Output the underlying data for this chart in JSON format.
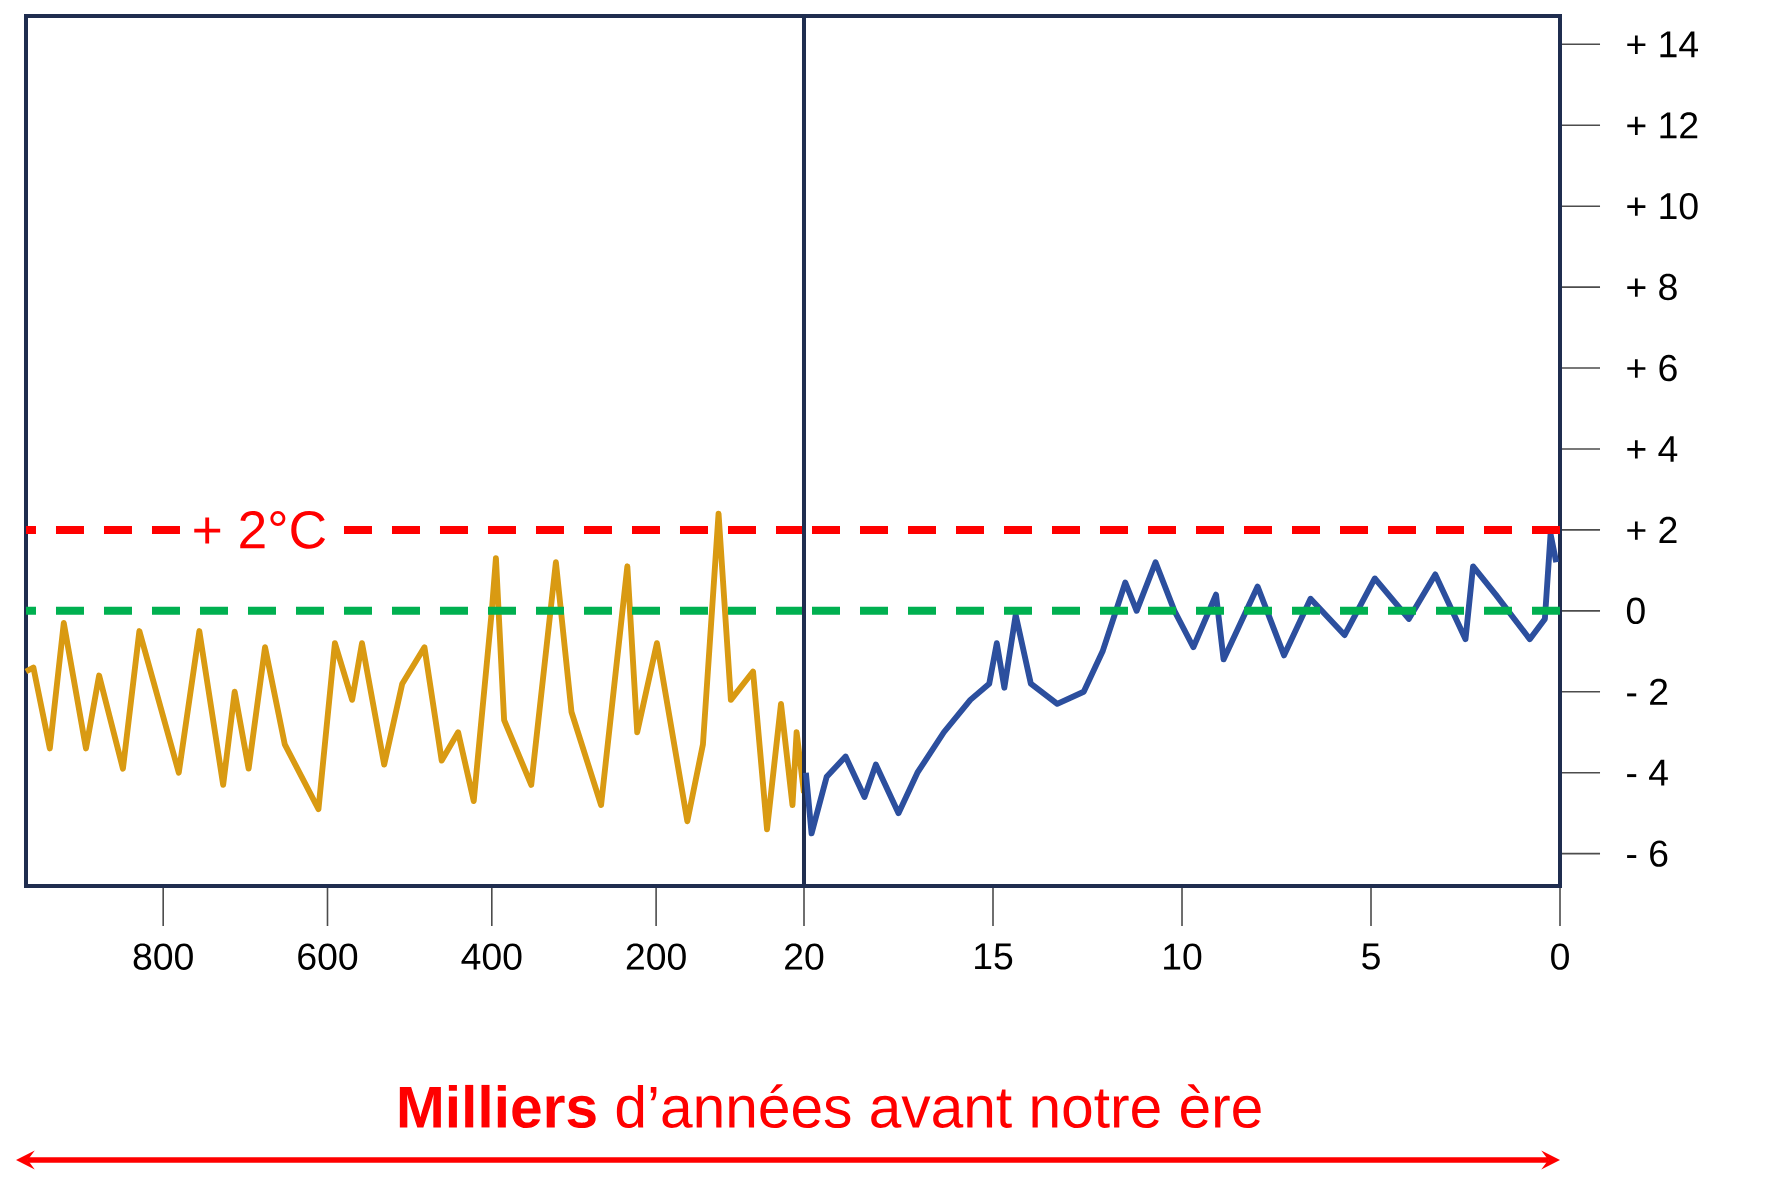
{
  "chart_data": [
    {
      "type": "line",
      "xlabel": "**Milliers** d’années avant notre ère",
      "xlim": [
        967,
        20
      ],
      "ylim": [
        -6.8,
        14.7
      ],
      "xticks": [
        800,
        600,
        400,
        200
      ],
      "tick_labels": "x",
      "line_style": "solid",
      "marker": "none",
      "series": [
        {
          "color": "#d99a12",
          "x": [
            967,
            958,
            938,
            921,
            894,
            878,
            849,
            829,
            781,
            756,
            727,
            713,
            696,
            676,
            652,
            611,
            591,
            570,
            558,
            531,
            509,
            482,
            461,
            441,
            422,
            400,
            395,
            385,
            352,
            322,
            303,
            267,
            235,
            223,
            199,
            162,
            143,
            124,
            109,
            82,
            65,
            48,
            34,
            29,
            20
          ],
          "values": [
            -1.5,
            -1.4,
            -3.4,
            -0.3,
            -3.4,
            -1.6,
            -3.9,
            -0.5,
            -4.0,
            -0.5,
            -4.3,
            -2.0,
            -3.9,
            -0.9,
            -3.3,
            -4.9,
            -0.8,
            -2.2,
            -0.8,
            -3.8,
            -1.8,
            -0.9,
            -3.7,
            -3.0,
            -4.7,
            0,
            1.3,
            -2.7,
            -4.3,
            1.2,
            -2.5,
            -4.8,
            1.1,
            -3.0,
            -0.8,
            -5.2,
            -3.3,
            2.4,
            -2.2,
            -1.5,
            -5.4,
            -2.3,
            -4.8,
            -3.0,
            -4.5
          ]
        }
      ],
      "ref_lines": [
        {
          "axis": "y",
          "value": 2,
          "label": "+ 2°C",
          "color": "#ff0000",
          "line_style": "dashed"
        },
        {
          "axis": "y",
          "value": 0,
          "color": "#00b050",
          "line_style": "dashed"
        }
      ]
    },
    {
      "type": "line",
      "xlim": [
        20,
        0
      ],
      "ylim": [
        -6.8,
        14.7
      ],
      "xticks": [
        20,
        15,
        10,
        5,
        0
      ],
      "yticks": [
        {
          "value": 14,
          "label": "+ 14"
        },
        {
          "value": 12,
          "label": "+ 12"
        },
        {
          "value": 10,
          "label": "+ 10"
        },
        {
          "value": 8,
          "label": "+ 8"
        },
        {
          "value": 6,
          "label": "+ 6"
        },
        {
          "value": 4,
          "label": "+ 4"
        },
        {
          "value": 2,
          "label": "+ 2"
        },
        0,
        {
          "value": -2,
          "label": "- 2"
        },
        {
          "value": -4,
          "label": "- 4"
        },
        {
          "value": -6,
          "label": "- 6"
        }
      ],
      "line_style": "solid",
      "marker": "none",
      "series": [
        {
          "color": "#2c4f9e",
          "x": [
            19.95,
            19.8,
            19.4,
            18.9,
            18.4,
            18.1,
            17.5,
            17.0,
            16.3,
            15.6,
            15.1,
            14.9,
            14.7,
            14.4,
            14.0,
            13.3,
            12.6,
            12.1,
            11.5,
            11.2,
            10.7,
            10.2,
            9.7,
            9.1,
            8.9,
            8.0,
            7.3,
            6.6,
            5.7,
            4.9,
            4.0,
            3.3,
            2.5,
            2.3,
            1.7,
            0.8,
            0.4,
            0.25,
            0.1
          ],
          "values": [
            -4.0,
            -5.5,
            -4.1,
            -3.6,
            -4.6,
            -3.8,
            -5.0,
            -4.0,
            -3.0,
            -2.2,
            -1.8,
            -0.8,
            -1.9,
            -0.1,
            -1.8,
            -2.3,
            -2.0,
            -1.0,
            0.7,
            0,
            1.2,
            0,
            -0.9,
            0.4,
            -1.2,
            0.6,
            -1.1,
            0.3,
            -0.6,
            0.8,
            -0.2,
            0.9,
            -0.7,
            1.1,
            0.4,
            -0.7,
            -0.2,
            1.9,
            1.2
          ]
        }
      ],
      "ref_lines": [
        {
          "axis": "y",
          "value": 2,
          "color": "#ff0000",
          "line_style": "dashed"
        },
        {
          "axis": "y",
          "value": 0,
          "color": "#00b050",
          "line_style": "dashed"
        }
      ]
    }
  ]
}
